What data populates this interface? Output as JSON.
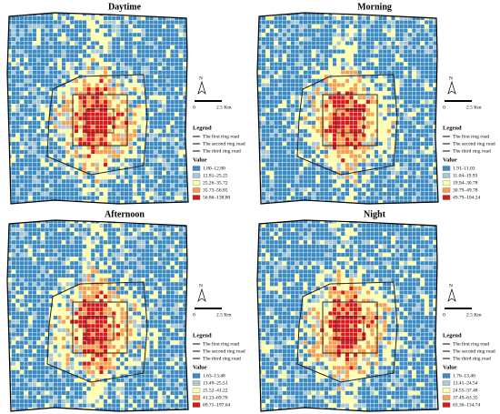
{
  "panels": [
    {
      "title": "Daytime",
      "north": "N",
      "scale": [
        "0",
        "2.5 Km"
      ],
      "legend_title": "Legend",
      "roads": [
        "The first ring road",
        "The second ring road",
        "The third ring road"
      ],
      "value_title": "Value",
      "classes": [
        {
          "label": "1.80–12.80",
          "color": "#3b8bc2"
        },
        {
          "label": "12.81–25.25",
          "color": "#a9c8d3"
        },
        {
          "label": "25.26–35.72",
          "color": "#ffffa8"
        },
        {
          "label": "35.73–56.85",
          "color": "#f9a04f"
        },
        {
          "label": "56.86–138.80",
          "color": "#d7191c"
        }
      ]
    },
    {
      "title": "Morning",
      "north": "N",
      "scale": [
        "0",
        "2.5 Km"
      ],
      "legend_title": "Legend",
      "roads": [
        "The first ring road",
        "The second ring road",
        "The third ring road"
      ],
      "value_title": "Value",
      "classes": [
        {
          "label": "1.91–11.03",
          "color": "#3b8bc2"
        },
        {
          "label": "11.04–19.93",
          "color": "#a9c8d3"
        },
        {
          "label": "19.94–30.78",
          "color": "#ffffa8"
        },
        {
          "label": "30.79–49.78",
          "color": "#f9a04f"
        },
        {
          "label": "49.79–104.24",
          "color": "#d7191c"
        }
      ]
    },
    {
      "title": "Afternoon",
      "north": "N",
      "scale": [
        "0",
        "2.5 Km"
      ],
      "legend_title": "Legend",
      "roads": [
        "The first ring road",
        "The second ring road",
        "The third ring road"
      ],
      "value_title": "Value",
      "classes": [
        {
          "label": "1.63–13.48",
          "color": "#3b8bc2"
        },
        {
          "label": "13.49–25.51",
          "color": "#a9c8d3"
        },
        {
          "label": "25.52–41.22",
          "color": "#ffffa8"
        },
        {
          "label": "41.23–69.70",
          "color": "#f9a04f"
        },
        {
          "label": "69.71–197.64",
          "color": "#d7191c"
        }
      ]
    },
    {
      "title": "Night",
      "north": "N",
      "scale": [
        "0",
        "2.5 Km"
      ],
      "legend_title": "Legend",
      "roads": [
        "The first ring road",
        "The second ring road",
        "The third ring road"
      ],
      "value_title": "Value",
      "classes": [
        {
          "label": "1.76–13.40",
          "color": "#3b8bc2"
        },
        {
          "label": "13.41–24.54",
          "color": "#a9c8d3"
        },
        {
          "label": "24.55–37.48",
          "color": "#ffffa8"
        },
        {
          "label": "37.49–63.35",
          "color": "#f9a04f"
        },
        {
          "label": "63.36–134.74",
          "color": "#d7191c"
        }
      ]
    }
  ]
}
